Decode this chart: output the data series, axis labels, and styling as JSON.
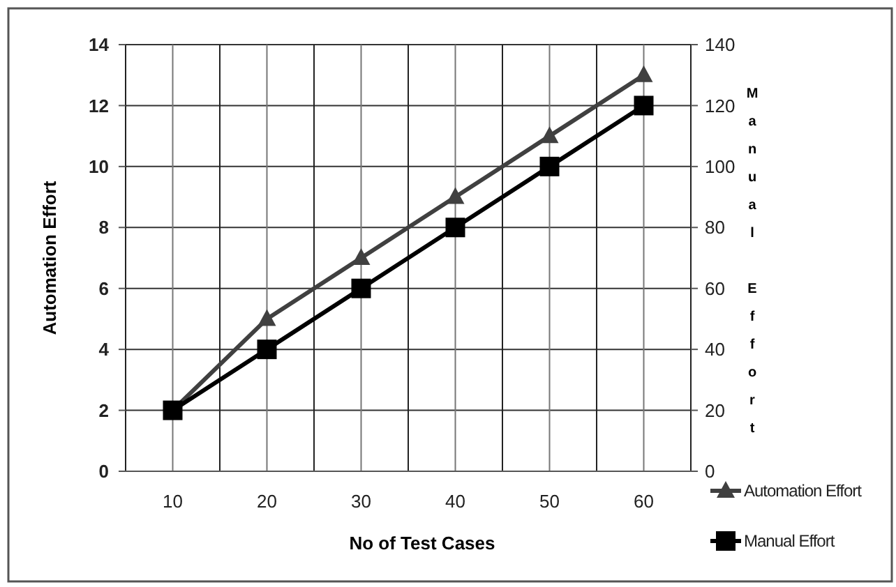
{
  "chart_data": {
    "type": "line",
    "xlabel": "No of Test Cases",
    "ylabel": "Automation Effort",
    "y2label": "Manual Effort",
    "categories": [
      "10",
      "20",
      "30",
      "40",
      "50",
      "60"
    ],
    "series": [
      {
        "name": "Automation Effort",
        "color": "#404040",
        "values": [
          2,
          5,
          7,
          9,
          11,
          13
        ],
        "marker": "triangle"
      },
      {
        "name": "Manual Effort",
        "color": "#000000",
        "values": [
          20,
          40,
          60,
          80,
          100,
          120
        ],
        "axis": "y2",
        "marker": "square"
      }
    ],
    "ylim": [
      0,
      14
    ],
    "yticks": [
      0,
      2,
      4,
      6,
      8,
      10,
      12,
      14
    ],
    "y2lim": [
      0,
      140
    ],
    "y2ticks": [
      0,
      20,
      40,
      60,
      80,
      100,
      120,
      140
    ],
    "grid": true,
    "legend": "right"
  }
}
